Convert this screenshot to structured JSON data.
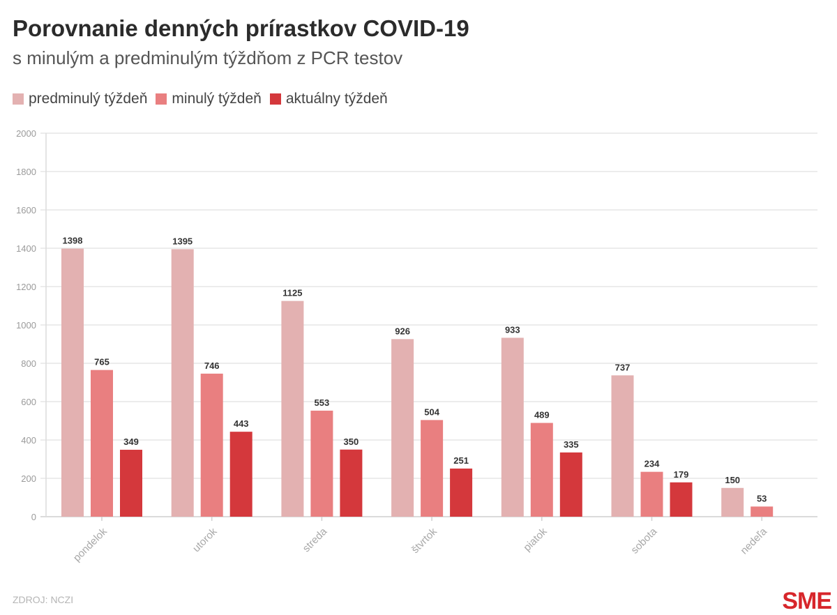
{
  "header": {
    "title": "Porovnanie denných prírastkov COVID-19",
    "subtitle": "s minulým a predminulým týždňom z PCR testov"
  },
  "legend": [
    {
      "label": "predminulý týždeň",
      "color": "#e3b1b1"
    },
    {
      "label": "minulý týždeň",
      "color": "#e97f80"
    },
    {
      "label": "aktuálny týždeň",
      "color": "#d4383c"
    }
  ],
  "footer": {
    "source": "ZDROJ: NCZI",
    "brand": "SME"
  },
  "chart_data": {
    "type": "bar",
    "categories": [
      "pondelok",
      "utorok",
      "streda",
      "štvrtok",
      "piatok",
      "sobota",
      "nedeľa"
    ],
    "series": [
      {
        "name": "predminulý týždeň",
        "color": "#e3b1b1",
        "values": [
          1398,
          1395,
          1125,
          926,
          933,
          737,
          150
        ]
      },
      {
        "name": "minulý týždeň",
        "color": "#e97f80",
        "values": [
          765,
          746,
          553,
          504,
          489,
          234,
          53
        ]
      },
      {
        "name": "aktuálny týždeň",
        "color": "#d4383c",
        "values": [
          349,
          443,
          350,
          251,
          335,
          179,
          null
        ]
      }
    ],
    "ylim": [
      0,
      2000
    ],
    "yticks": [
      0,
      200,
      400,
      600,
      800,
      1000,
      1200,
      1400,
      1600,
      1800,
      2000
    ],
    "grid": true,
    "legend_position": "top-left",
    "data_labels": true
  }
}
